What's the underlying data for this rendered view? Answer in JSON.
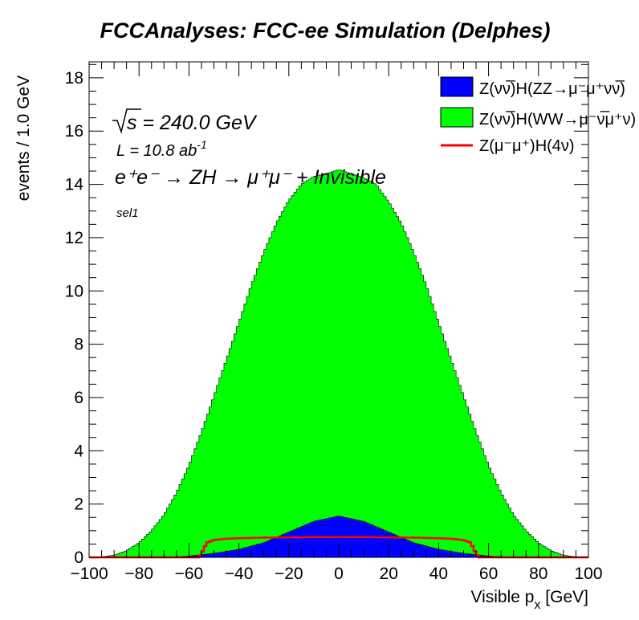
{
  "chart_data": {
    "type": "histogram",
    "title": "FCCAnalyses: FCC-ee Simulation (Delphes)",
    "xlabel_main": "Visible p",
    "xlabel_sub": "x",
    "xlabel_unit": " [GeV]",
    "ylabel": "events / 1.0 GeV",
    "xlim": [
      -100,
      100
    ],
    "ylim": [
      0,
      18.6
    ],
    "x_ticks": [
      -100,
      -80,
      -60,
      -40,
      -20,
      0,
      20,
      40,
      60,
      80,
      100
    ],
    "x_tick_labels": [
      "−100",
      "−80",
      "−60",
      "−40",
      "−20",
      "0",
      "20",
      "40",
      "60",
      "80",
      "100"
    ],
    "y_ticks": [
      0,
      2,
      4,
      6,
      8,
      10,
      12,
      14,
      16,
      18
    ],
    "y_tick_labels": [
      "0",
      "2",
      "4",
      "6",
      "8",
      "10",
      "12",
      "14",
      "16",
      "18"
    ],
    "bin_width": 1.0,
    "stacked": true,
    "annotations": {
      "sqrt_s": "s",
      "sqrt_value": " = 240.0 GeV",
      "lumi_text": "L = 10.8 ab",
      "lumi_exp": "-1",
      "process": "e⁺e⁻ → ZH → μ⁺μ⁻ + Invisible",
      "selection": "sel1"
    },
    "series": [
      {
        "name": "Z(νν̅)H(ZZ→μ⁻μ⁺νν̅)",
        "kind": "filled",
        "color": "#0000ff",
        "x": [
          -70,
          -60,
          -50,
          -40,
          -30,
          -20,
          -10,
          0,
          10,
          20,
          30,
          40,
          50,
          60,
          70
        ],
        "y": [
          0.0,
          0.05,
          0.15,
          0.3,
          0.55,
          0.95,
          1.35,
          1.55,
          1.35,
          0.95,
          0.55,
          0.3,
          0.15,
          0.05,
          0.0
        ]
      },
      {
        "name": "Z(νν̅)H(WW→μ⁻ν̅μ⁺ν)",
        "kind": "filled",
        "color": "#00ff00",
        "x": [
          -95,
          -90,
          -85,
          -80,
          -75,
          -70,
          -65,
          -60,
          -55,
          -50,
          -45,
          -40,
          -35,
          -30,
          -25,
          -20,
          -15,
          -10,
          -5,
          0,
          5,
          10,
          15,
          20,
          25,
          30,
          35,
          40,
          45,
          50,
          55,
          60,
          65,
          70,
          75,
          80,
          85,
          90,
          95
        ],
        "y": [
          0.02,
          0.08,
          0.25,
          0.55,
          1.0,
          1.6,
          2.4,
          3.4,
          4.6,
          5.9,
          7.2,
          8.5,
          9.8,
          10.9,
          11.8,
          12.45,
          12.85,
          12.95,
          12.95,
          13.0,
          12.95,
          12.9,
          12.85,
          12.4,
          11.8,
          10.9,
          9.8,
          8.5,
          7.2,
          5.9,
          4.6,
          3.4,
          2.4,
          1.6,
          1.0,
          0.55,
          0.25,
          0.08,
          0.02
        ]
      },
      {
        "name": "Z(μ⁻μ⁺)H(4ν)",
        "kind": "line",
        "color": "#ff0000",
        "x": [
          -100,
          -56,
          -54,
          -53,
          -50,
          -45,
          -40,
          -30,
          -20,
          -10,
          0,
          10,
          20,
          30,
          40,
          45,
          50,
          53,
          54,
          56,
          100
        ],
        "y": [
          0.0,
          0.0,
          0.3,
          0.55,
          0.65,
          0.7,
          0.72,
          0.74,
          0.75,
          0.76,
          0.76,
          0.76,
          0.75,
          0.74,
          0.72,
          0.7,
          0.65,
          0.55,
          0.3,
          0.0,
          0.0
        ]
      }
    ],
    "legend_position": "top-right",
    "colors": {
      "frame": "#000000",
      "background": "#ffffff"
    }
  }
}
